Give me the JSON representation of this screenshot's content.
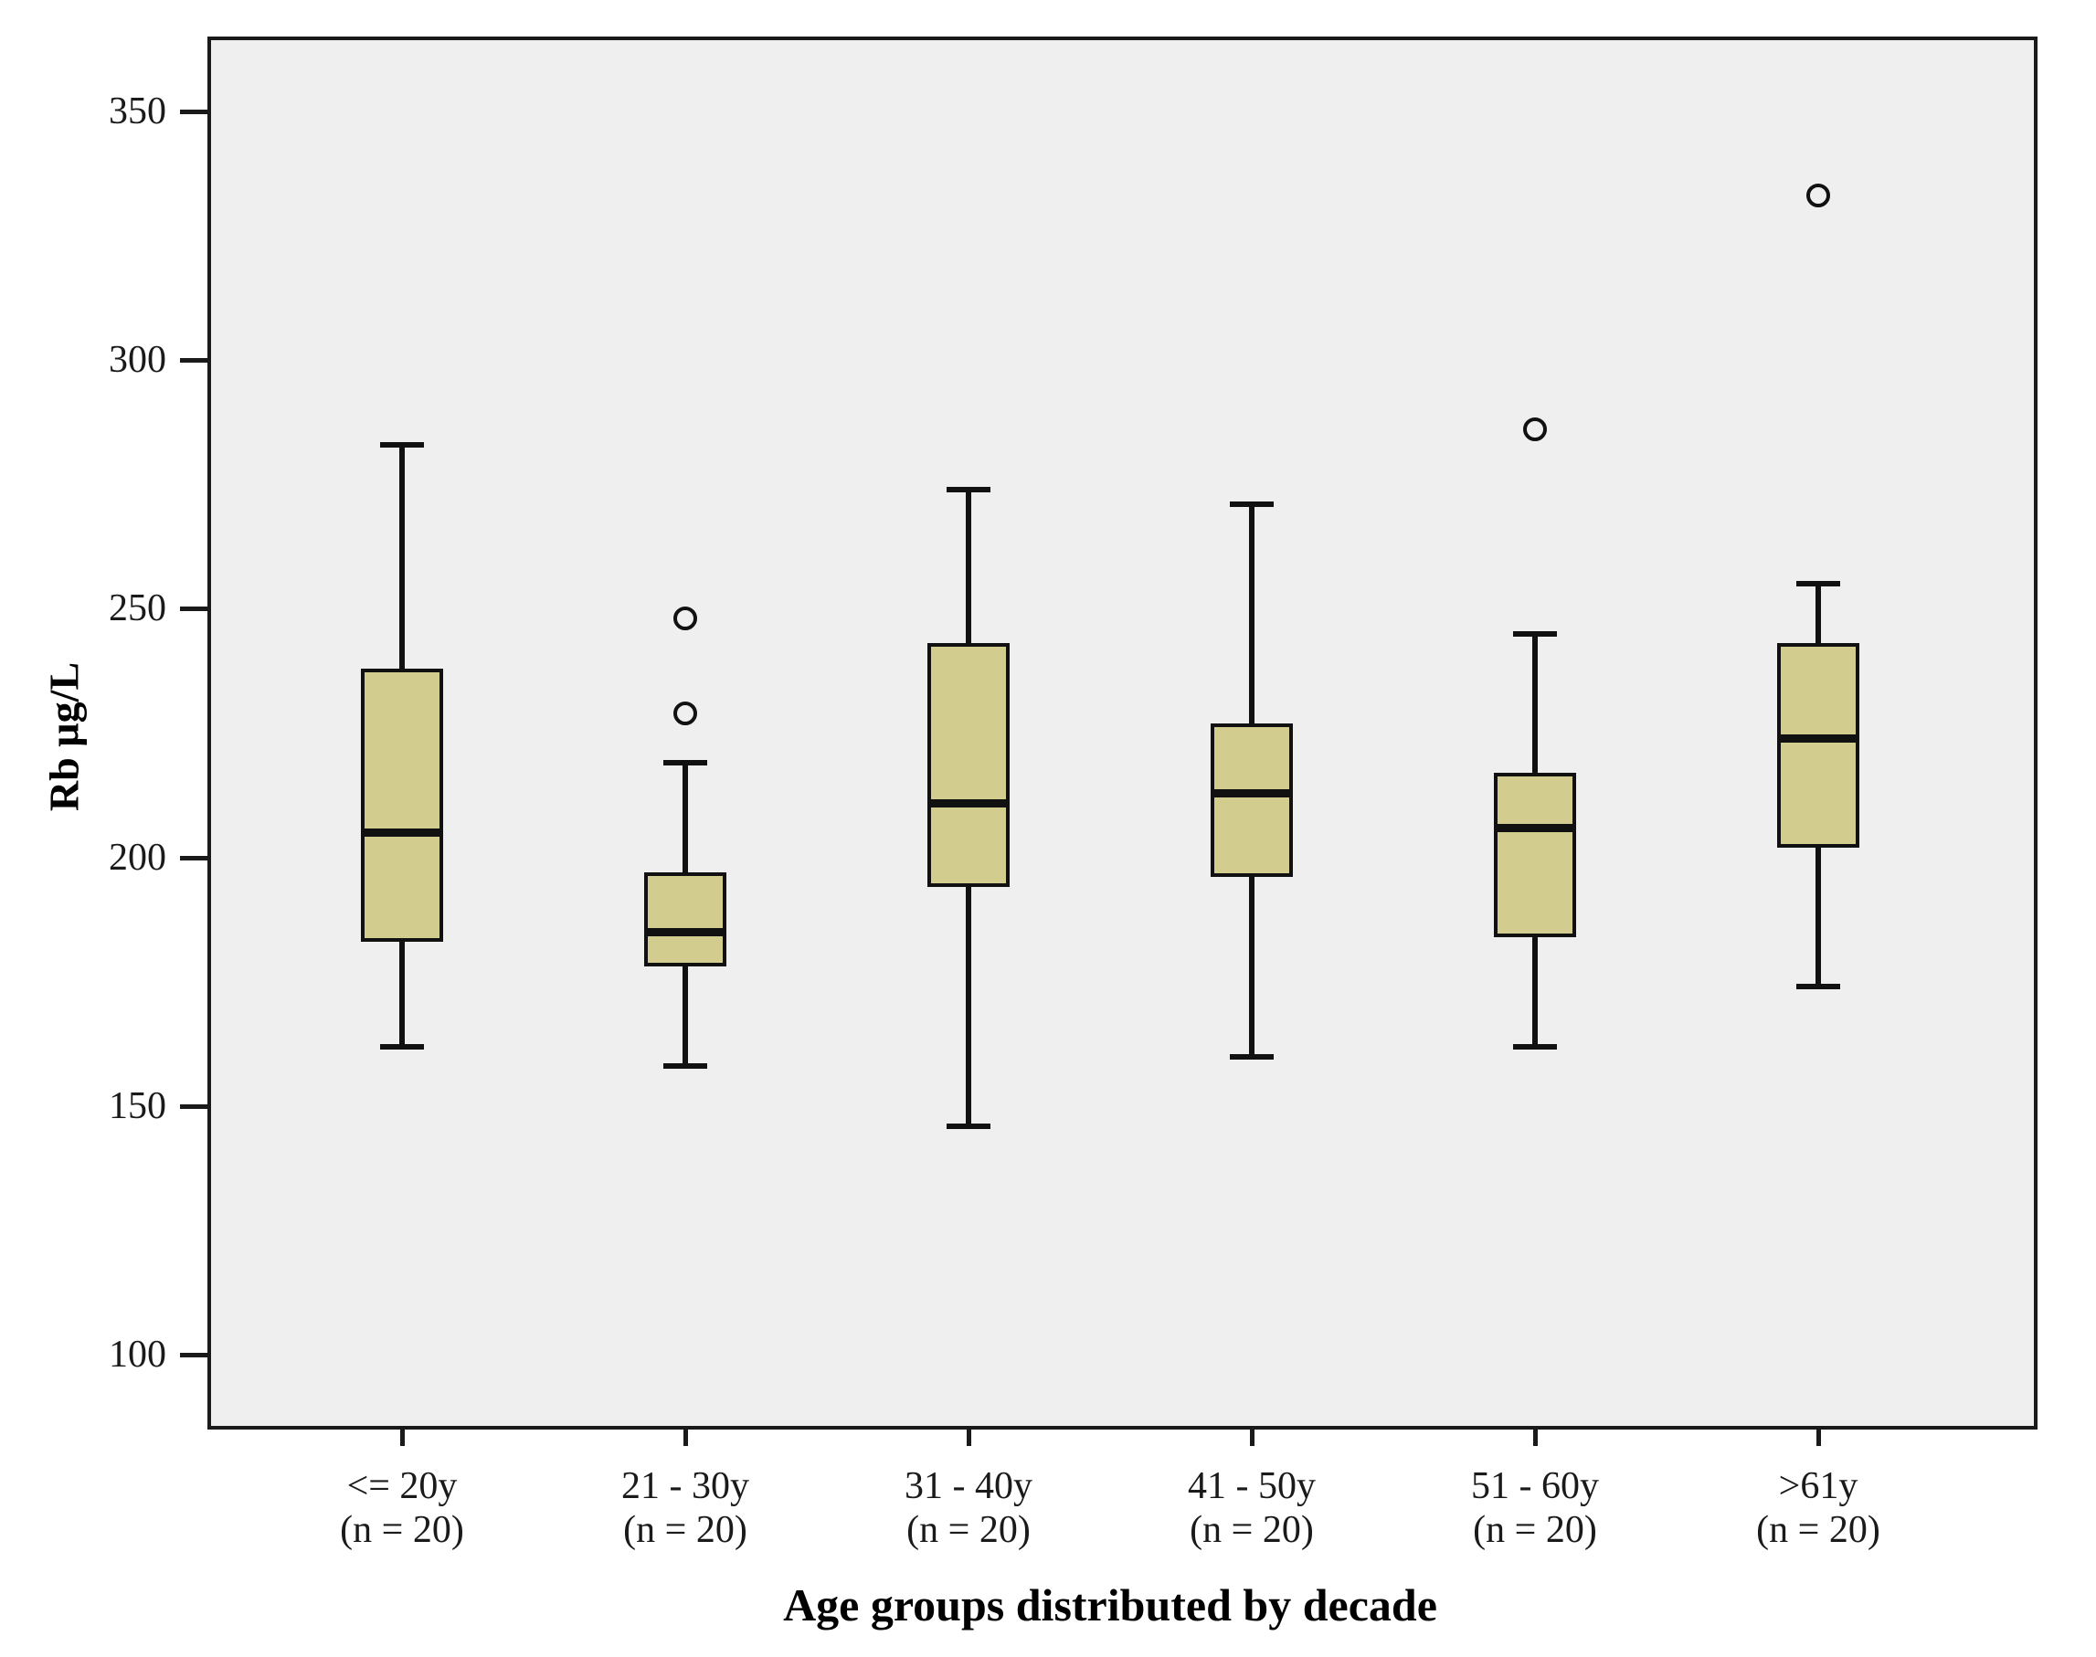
{
  "chart_data": {
    "type": "boxplot",
    "xlabel": "Age groups distributed by decade",
    "ylabel": "Rb µg/L",
    "y_ticks": [
      350,
      300,
      250,
      200,
      150,
      100
    ],
    "ylim": [
      85,
      365
    ],
    "grid": false,
    "legend": false,
    "categories": [
      {
        "label": "<= 20y",
        "sublabel": "(n = 20)",
        "n": 20,
        "whisker_low": 162,
        "q1": 183,
        "median": 205,
        "q3": 238,
        "whisker_high": 283,
        "outliers": []
      },
      {
        "label": "21 - 30y",
        "sublabel": "(n = 20)",
        "n": 20,
        "whisker_low": 158,
        "q1": 178,
        "median": 185,
        "q3": 197,
        "whisker_high": 219,
        "outliers": [
          229,
          248
        ]
      },
      {
        "label": "31 - 40y",
        "sublabel": "(n = 20)",
        "n": 20,
        "whisker_low": 146,
        "q1": 194,
        "median": 211,
        "q3": 243,
        "whisker_high": 274,
        "outliers": []
      },
      {
        "label": "41 - 50y",
        "sublabel": "(n = 20)",
        "n": 20,
        "whisker_low": 160,
        "q1": 196,
        "median": 213,
        "q3": 227,
        "whisker_high": 271,
        "outliers": []
      },
      {
        "label": "51 - 60y",
        "sublabel": "(n = 20)",
        "n": 20,
        "whisker_low": 162,
        "q1": 184,
        "median": 206,
        "q3": 217,
        "whisker_high": 245,
        "outliers": [
          286
        ]
      },
      {
        "label": ">61y",
        "sublabel": "(n = 20)",
        "n": 20,
        "whisker_low": 174,
        "q1": 202,
        "median": 224,
        "q3": 243,
        "whisker_high": 255,
        "outliers": [
          333
        ]
      }
    ],
    "colors": {
      "box_fill": "#d3cc8f",
      "line": "#111111",
      "plot_background": "#efefef",
      "figure_background": "#ffffff"
    }
  }
}
